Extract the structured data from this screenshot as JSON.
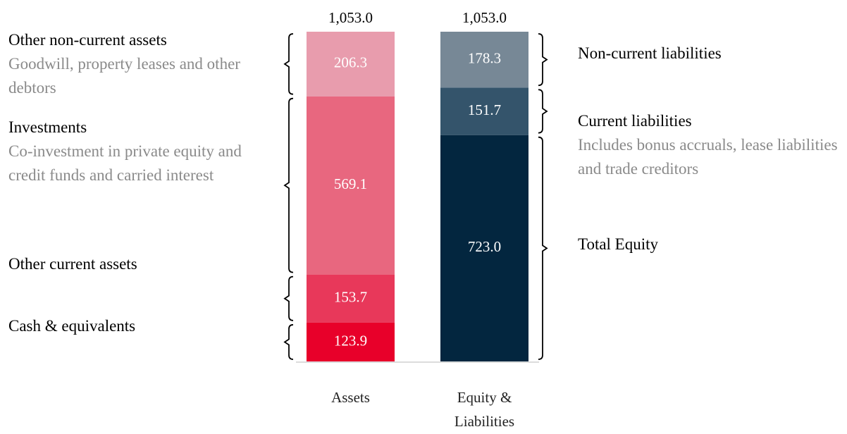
{
  "chart_data": {
    "type": "stacked_bar",
    "categories": [
      "Assets",
      "Equity & Liabilities"
    ],
    "totals": [
      1053,
      1053
    ],
    "total_labels": [
      "1,053.0",
      "1,053.0"
    ],
    "stacks": [
      [
        {
          "name": "Cash & equivalents",
          "color": "#e8002a",
          "value": 123.9
        },
        {
          "name": "Other current assets",
          "color": "#e8385a",
          "value": 153.7
        },
        {
          "name": "Investments",
          "description": "Co-investment in private equity and credit funds and carried interest",
          "color": "#e8677f",
          "value": 569.1
        },
        {
          "name": "Other non-current assets",
          "description": "Goodwill, property leases and other debtors",
          "color": "#e89cad",
          "value": 206.3
        }
      ],
      [
        {
          "name": "Total Equity",
          "color": "#03263f",
          "value": 723,
          "value_label": "723.0"
        },
        {
          "name": "Current liabilities",
          "description": "Includes bonus accruals, lease liabilities and trade creditors",
          "color": "#34546b",
          "value": 151.7
        },
        {
          "name": "Non-current liabilities",
          "color": "#778896",
          "value": 178.3
        }
      ]
    ]
  }
}
